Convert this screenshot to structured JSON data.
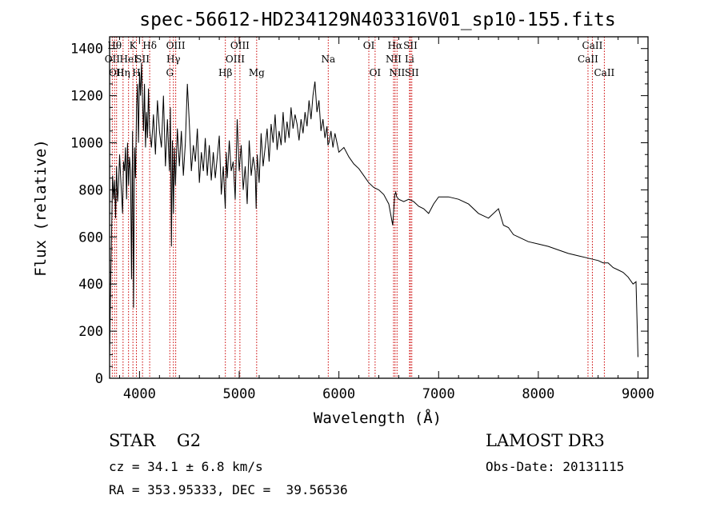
{
  "chart_data": {
    "type": "line",
    "title": "spec-56612-HD234129N403316V01_sp10-155.fits",
    "xlabel": "Wavelength (Å)",
    "ylabel": "Flux (relative)",
    "xlim": [
      3700,
      9100
    ],
    "ylim": [
      0,
      1450
    ],
    "xticks": [
      4000,
      5000,
      6000,
      7000,
      8000,
      9000
    ],
    "yticks": [
      0,
      200,
      400,
      600,
      800,
      1000,
      1200,
      1400
    ],
    "series": [
      {
        "name": "flux",
        "x": [
          3700,
          3710,
          3720,
          3730,
          3740,
          3750,
          3760,
          3770,
          3780,
          3790,
          3800,
          3810,
          3820,
          3830,
          3840,
          3850,
          3860,
          3870,
          3880,
          3890,
          3900,
          3910,
          3920,
          3930,
          3940,
          3950,
          3960,
          3970,
          3980,
          3990,
          4000,
          4010,
          4020,
          4030,
          4040,
          4050,
          4060,
          4070,
          4080,
          4090,
          4100,
          4120,
          4140,
          4160,
          4180,
          4200,
          4220,
          4240,
          4260,
          4280,
          4300,
          4310,
          4320,
          4330,
          4340,
          4350,
          4360,
          4380,
          4400,
          4420,
          4440,
          4460,
          4480,
          4500,
          4520,
          4540,
          4560,
          4580,
          4600,
          4620,
          4640,
          4660,
          4680,
          4700,
          4720,
          4740,
          4760,
          4780,
          4800,
          4820,
          4840,
          4860,
          4870,
          4880,
          4900,
          4920,
          4940,
          4960,
          4980,
          5000,
          5020,
          5040,
          5060,
          5080,
          5100,
          5120,
          5140,
          5160,
          5170,
          5180,
          5200,
          5220,
          5240,
          5260,
          5280,
          5300,
          5320,
          5340,
          5360,
          5380,
          5400,
          5420,
          5440,
          5460,
          5480,
          5500,
          5520,
          5540,
          5560,
          5580,
          5600,
          5620,
          5640,
          5660,
          5680,
          5700,
          5720,
          5740,
          5760,
          5780,
          5800,
          5820,
          5840,
          5860,
          5880,
          5890,
          5900,
          5920,
          5940,
          5960,
          5980,
          6000,
          6050,
          6100,
          6150,
          6200,
          6250,
          6300,
          6350,
          6400,
          6450,
          6500,
          6540,
          6560,
          6570,
          6580,
          6600,
          6650,
          6700,
          6750,
          6800,
          6850,
          6900,
          6950,
          7000,
          7100,
          7200,
          7300,
          7400,
          7500,
          7600,
          7650,
          7700,
          7750,
          7800,
          7900,
          8000,
          8100,
          8200,
          8300,
          8400,
          8500,
          8600,
          8650,
          8700,
          8750,
          8800,
          8850,
          8900,
          8950,
          8980,
          9000
        ],
        "y": [
          80,
          380,
          620,
          860,
          760,
          840,
          680,
          900,
          750,
          820,
          950,
          860,
          780,
          700,
          920,
          880,
          980,
          760,
          1000,
          820,
          940,
          880,
          420,
          1050,
          300,
          980,
          850,
          1150,
          1250,
          1000,
          1300,
          1200,
          1340,
          1180,
          1050,
          1250,
          980,
          1130,
          1020,
          1230,
          1060,
          980,
          1120,
          950,
          1180,
          1050,
          980,
          1200,
          900,
          1100,
          880,
          1150,
          560,
          1010,
          700,
          980,
          820,
          1060,
          900,
          1050,
          860,
          1000,
          1250,
          1080,
          880,
          990,
          920,
          1060,
          830,
          960,
          880,
          1020,
          860,
          990,
          840,
          960,
          850,
          940,
          1030,
          780,
          900,
          720,
          960,
          850,
          1010,
          880,
          920,
          760,
          1100,
          880,
          990,
          800,
          900,
          740,
          1010,
          860,
          940,
          880,
          720,
          950,
          830,
          1040,
          900,
          980,
          1060,
          920,
          1080,
          1000,
          1120,
          970,
          1050,
          990,
          1130,
          1000,
          1090,
          1020,
          1150,
          1060,
          1120,
          1080,
          1010,
          1100,
          1040,
          1130,
          1070,
          1180,
          1100,
          1200,
          1260,
          1130,
          1180,
          1050,
          1100,
          1020,
          1070,
          990,
          1000,
          1050,
          980,
          1040,
          1000,
          960,
          980,
          940,
          910,
          890,
          860,
          830,
          810,
          800,
          780,
          740,
          650,
          780,
          790,
          770,
          760,
          750,
          760,
          750,
          730,
          720,
          700,
          740,
          770,
          770,
          760,
          740,
          700,
          680,
          720,
          650,
          640,
          610,
          600,
          580,
          570,
          560,
          545,
          530,
          520,
          510,
          500,
          490,
          490,
          470,
          460,
          450,
          430,
          400,
          410,
          90
        ]
      }
    ],
    "lines": [
      {
        "lambda": 3727,
        "label": "OII",
        "row": 2
      },
      {
        "lambda": 3750,
        "label": "Hθ",
        "row": 1
      },
      {
        "lambda": 3770,
        "label": "OII",
        "row": 3
      },
      {
        "lambda": 3835,
        "label": "Hη",
        "row": 3
      },
      {
        "lambda": 3890,
        "label": "HeI",
        "row": 2
      },
      {
        "lambda": 3934,
        "label": "K",
        "row": 1
      },
      {
        "lambda": 3969,
        "label": "H",
        "row": 3
      },
      {
        "lambda": 4030,
        "label": "SII",
        "row": 2
      },
      {
        "lambda": 4102,
        "label": "Hδ",
        "row": 1
      },
      {
        "lambda": 4304,
        "label": "G",
        "row": 3
      },
      {
        "lambda": 4340,
        "label": "Hγ",
        "row": 2
      },
      {
        "lambda": 4363,
        "label": "OIII",
        "row": 1
      },
      {
        "lambda": 4861,
        "label": "Hβ",
        "row": 3
      },
      {
        "lambda": 4959,
        "label": "OIII",
        "row": 2
      },
      {
        "lambda": 5007,
        "label": "OIII",
        "row": 1
      },
      {
        "lambda": 5175,
        "label": "Mg",
        "row": 3
      },
      {
        "lambda": 5893,
        "label": "Na",
        "row": 2
      },
      {
        "lambda": 6300,
        "label": "OI",
        "row": 1
      },
      {
        "lambda": 6363,
        "label": "OI",
        "row": 3
      },
      {
        "lambda": 6548,
        "label": "NII",
        "row": 2
      },
      {
        "lambda": 6563,
        "label": "Hα",
        "row": 1
      },
      {
        "lambda": 6583,
        "label": "NII",
        "row": 3
      },
      {
        "lambda": 6708,
        "label": "Li",
        "row": 2
      },
      {
        "lambda": 6717,
        "label": "SII",
        "row": 1
      },
      {
        "lambda": 6731,
        "label": "SII",
        "row": 3
      },
      {
        "lambda": 8498,
        "label": "CaII",
        "row": 2
      },
      {
        "lambda": 8542,
        "label": "CaII",
        "row": 1
      },
      {
        "lambda": 8662,
        "label": "CaII",
        "row": 3
      }
    ]
  },
  "info": {
    "object": "STAR    G2",
    "cz": "cz = 34.1 ± 6.8 km/s",
    "radec": "RA = 353.95333, DEC =  39.56536",
    "survey": "LAMOST DR3",
    "obsdate": "Obs-Date: 20131115"
  },
  "colors": {
    "line": "#000000",
    "marker": "#cc0000"
  }
}
